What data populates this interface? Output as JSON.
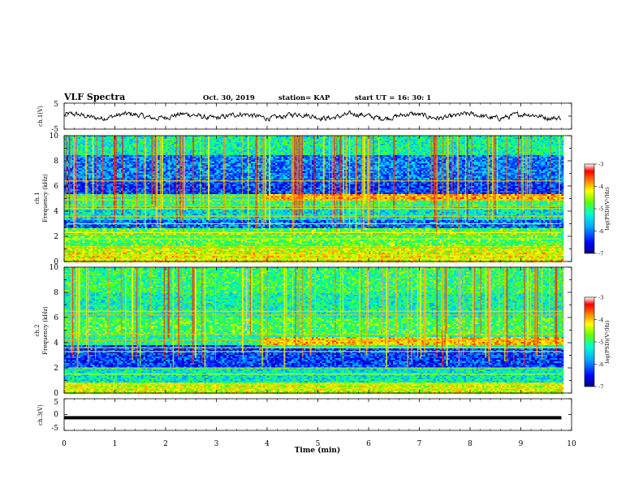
{
  "header": {
    "title": "VLF Spectra",
    "date": "Oct. 30, 2019",
    "station": "station= KAP",
    "start": "start  UT  =   16: 30: 1"
  },
  "chart_data": [
    {
      "type": "line",
      "name": "ch1-waveform",
      "ylabel": "ch.1(V)",
      "ylim": [
        -5,
        5
      ],
      "yticks": [
        "5",
        "-5"
      ],
      "xlim": [
        0,
        10
      ],
      "note": "noisy signal roughly between -1.5 and 1.5 V over 0-9.8 min"
    },
    {
      "type": "heatmap",
      "name": "ch1-spectrogram",
      "ylabel": "ch.1\nFrequency  (kHz)",
      "ylim": [
        0,
        10
      ],
      "yticks": [
        "0",
        "2",
        "4",
        "6",
        "8",
        "10"
      ],
      "xlim": [
        0,
        10
      ],
      "data_xmax": 9.8,
      "colorbar": {
        "label": "log(PSD)(V²/Hz)",
        "range": [
          -7,
          -3
        ],
        "ticks": [
          "-3",
          "-4",
          "-5",
          "-6",
          "-7"
        ]
      },
      "bands": [
        {
          "kHz": [
            0,
            0.7
          ],
          "level": -4.3
        },
        {
          "kHz": [
            0.7,
            1.2
          ],
          "level": -4.5
        },
        {
          "kHz": [
            1.2,
            2.6
          ],
          "level": -4.9
        },
        {
          "kHz": [
            2.6,
            3.3
          ],
          "level": -6.1
        },
        {
          "kHz": [
            3.3,
            4.3
          ],
          "level": -5.5
        },
        {
          "kHz": [
            4.3,
            5.3
          ],
          "level": -5.1
        },
        {
          "kHz": [
            5.3,
            6.5
          ],
          "level": -6.3
        },
        {
          "kHz": [
            6.5,
            8.5
          ],
          "level": -6.0
        },
        {
          "kHz": [
            8.5,
            10
          ],
          "level": -5.3
        }
      ],
      "lines_kHz": [
        0.2,
        0.5,
        1.1,
        1.8,
        2.1,
        2.3,
        3.0,
        3.6,
        4.2,
        4.4,
        4.9,
        5.2,
        6.4
      ],
      "late_enhanced_band_kHz": [
        4.8,
        5.3
      ]
    },
    {
      "type": "heatmap",
      "name": "ch2-spectrogram",
      "ylabel": "ch.2\nFrequency  (kHz)",
      "ylim": [
        0,
        10
      ],
      "yticks": [
        "0",
        "2",
        "4",
        "6",
        "8",
        "10"
      ],
      "xlim": [
        0,
        10
      ],
      "data_xmax": 9.8,
      "colorbar": {
        "label": "log(PSD)(V²/Hz)",
        "range": [
          -7,
          -3
        ],
        "ticks": [
          "-3",
          "-4",
          "-5",
          "-6",
          "-7"
        ]
      },
      "bands": [
        {
          "kHz": [
            0,
            0.8
          ],
          "level": -4.5
        },
        {
          "kHz": [
            0.8,
            2.0
          ],
          "level": -5.4
        },
        {
          "kHz": [
            2.0,
            3.8
          ],
          "level": -6.3
        },
        {
          "kHz": [
            3.8,
            4.6
          ],
          "level": -5.2
        },
        {
          "kHz": [
            4.6,
            6.0
          ],
          "level": -5.0
        },
        {
          "kHz": [
            6.0,
            8.0
          ],
          "level": -5.3
        },
        {
          "kHz": [
            8.0,
            10
          ],
          "level": -5.1
        }
      ],
      "lines_kHz": [
        0.4,
        0.7,
        1.5,
        2.0,
        3.3,
        3.6,
        4.2,
        4.7,
        6.2,
        6.5
      ],
      "late_enhanced_band_kHz": [
        3.6,
        4.4
      ]
    },
    {
      "type": "line",
      "name": "ch3-waveform",
      "ylabel": "ch.3(V)",
      "ylim": [
        -5,
        5
      ],
      "yticks": [
        "5",
        "0",
        "-5"
      ],
      "xlim": [
        0,
        10
      ],
      "note": "flat thick line near -1 V"
    }
  ],
  "xaxis": {
    "label": "Time  (min)",
    "ticks": [
      "0",
      "1",
      "2",
      "3",
      "4",
      "5",
      "6",
      "7",
      "8",
      "9",
      "10"
    ]
  },
  "colormap": [
    "#00007a",
    "#0000ff",
    "#0066ff",
    "#00ccff",
    "#00ff99",
    "#66ff00",
    "#ffff00",
    "#ff9900",
    "#ff0000",
    "#ffffff"
  ]
}
